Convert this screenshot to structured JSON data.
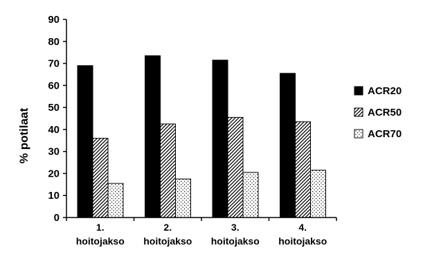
{
  "chart_data": {
    "type": "bar",
    "categories": [
      [
        "1.",
        "hoitojakso"
      ],
      [
        "2.",
        "hoitojakso"
      ],
      [
        "3.",
        "hoitojakso"
      ],
      [
        "4.",
        "hoitojakso"
      ]
    ],
    "series": [
      {
        "name": "ACR20",
        "values": [
          69,
          73.5,
          71.5,
          65.5
        ],
        "pattern": "solid"
      },
      {
        "name": "ACR50",
        "values": [
          36,
          42.5,
          45.5,
          43.5
        ],
        "pattern": "hatch"
      },
      {
        "name": "ACR70",
        "values": [
          15.5,
          17.5,
          20.5,
          21.5
        ],
        "pattern": "dots"
      }
    ],
    "ylabel": "% potilaat",
    "xlabel": "",
    "title": "",
    "ylim": [
      0,
      90
    ],
    "yticks": [
      0,
      10,
      20,
      30,
      40,
      50,
      60,
      70,
      80,
      90
    ],
    "grid": false,
    "legend_position": "right",
    "colors": {
      "bar_stroke": "#000000",
      "solid_fill": "#000000",
      "background": "#ffffff"
    }
  }
}
